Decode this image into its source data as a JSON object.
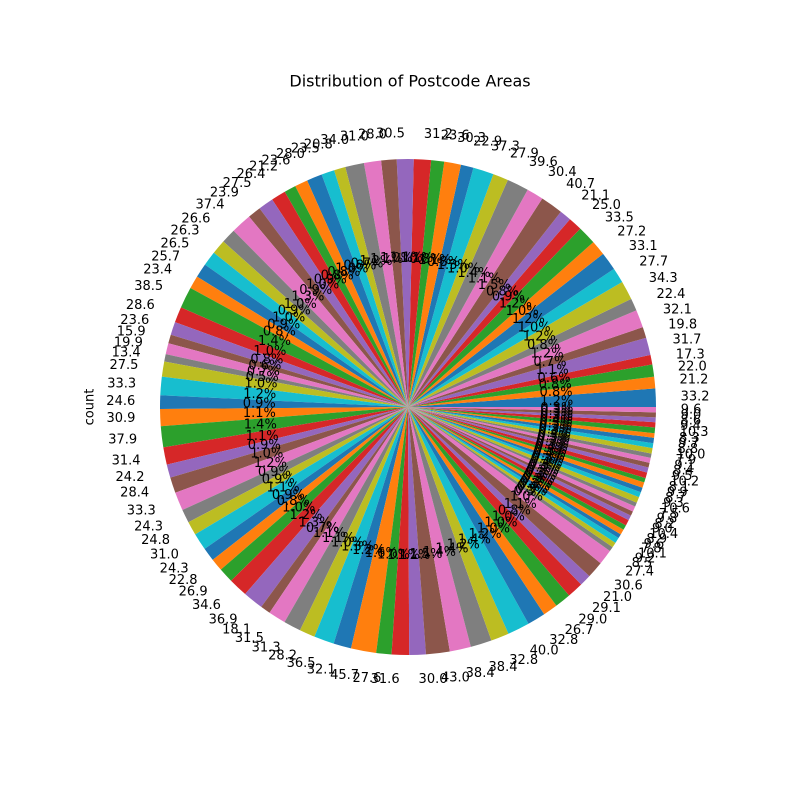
{
  "chart_data": {
    "type": "pie",
    "title": "Distribution of Postcode Areas",
    "ylabel": "count",
    "start_angle": 0,
    "colors": [
      "#1f77b4",
      "#ff7f0e",
      "#2ca02c",
      "#d62728",
      "#9467bd",
      "#8c564b",
      "#e377c2",
      "#7f7f7f",
      "#bcbd22",
      "#17becf"
    ],
    "values": [
      33.2,
      21.2,
      22.0,
      17.3,
      31.7,
      19.8,
      32.1,
      22.4,
      34.3,
      27.7,
      33.1,
      27.2,
      33.5,
      25.0,
      21.1,
      40.7,
      30.4,
      39.6,
      27.9,
      37.3,
      22.9,
      30.3,
      23.6,
      31.2,
      30.5,
      28.0,
      31.0,
      34.0,
      20.8,
      23.5,
      28.0,
      23.6,
      21.2,
      26.4,
      27.5,
      23.9,
      37.4,
      26.6,
      26.3,
      26.5,
      25.7,
      23.4,
      38.5,
      28.6,
      23.6,
      15.9,
      19.9,
      13.4,
      27.5,
      33.3,
      24.6,
      30.9,
      37.9,
      31.4,
      24.2,
      28.4,
      33.3,
      24.3,
      24.8,
      31.0,
      24.3,
      22.8,
      26.9,
      34.6,
      36.9,
      18.1,
      31.5,
      31.3,
      28.2,
      36.5,
      32.1,
      45.7,
      27.6,
      31.6,
      30.0,
      43.0,
      38.4,
      38.4,
      32.8,
      40.0,
      32.8,
      26.7,
      29.0,
      29.1,
      21.0,
      30.6,
      27.4,
      8.5,
      9.2,
      10.1,
      7.8,
      9.6,
      8.9,
      10.4,
      9.0,
      8.2,
      9.8,
      7.5,
      10.6,
      9.3,
      8.7,
      9.9,
      8.1,
      10.2,
      9.5,
      8.4,
      9.1,
      7.9,
      10.0,
      8.8,
      9.7,
      8.3,
      10.3,
      9.4,
      8.6,
      9.0,
      9.6
    ],
    "categories": [
      "33.2",
      "21.2",
      "22.0",
      "17.3",
      "31.7",
      "19.8",
      "32.1",
      "22.4",
      "34.3",
      "27.7",
      "33.1",
      "27.2",
      "33.5",
      "25.0",
      "21.1",
      "40.7",
      "30.4",
      "39.6",
      "27.9",
      "37.3",
      "22.9",
      "30.3",
      "23.6",
      "31.2",
      "30.5",
      "28.0",
      "31.0",
      "34.0",
      "20.8",
      "23.5",
      "28.0",
      "23.6",
      "21.2",
      "26.4",
      "27.5",
      "23.9",
      "37.4",
      "26.6",
      "26.3",
      "26.5",
      "25.7",
      "23.4",
      "38.5",
      "28.6",
      "23.6",
      "15.9",
      "19.9",
      "13.4",
      "27.5",
      "33.3",
      "24.6",
      "30.9",
      "37.9",
      "31.4",
      "24.2",
      "28.4",
      "33.3",
      "24.3",
      "24.8",
      "31.0",
      "24.3",
      "22.8",
      "26.9",
      "34.6",
      "36.9",
      "18.1",
      "31.5",
      "31.3",
      "28.2",
      "36.5",
      "32.1",
      "45.7",
      "27.6",
      "31.6",
      "30.0",
      "43.0",
      "38.4",
      "38.4",
      "32.8",
      "40.0",
      "32.8",
      "26.7",
      "29.0",
      "29.1",
      "21.0",
      "30.6",
      "27.4",
      "8.5",
      "9.2",
      "10.1",
      "7.8",
      "9.6",
      "8.9",
      "10.4",
      "9.0",
      "8.2",
      "9.8",
      "7.5",
      "10.6",
      "9.3",
      "8.7",
      "9.9",
      "8.1",
      "10.2",
      "9.5",
      "8.4",
      "9.1",
      "7.9",
      "10.0",
      "8.8",
      "9.7",
      "8.3",
      "10.3",
      "9.4",
      "8.6",
      "9.0",
      "9.6"
    ],
    "value_labels": [
      "1.2%",
      "0.8%",
      "0.8%",
      "0.6%",
      "1.1%",
      "0.7%",
      "1.2%",
      "0.8%",
      "1.2%",
      "1.0%",
      "1.2%",
      "1.0%",
      "1.2%",
      "0.9%",
      "0.8%",
      "1.5%",
      "1.1%",
      "1.4%",
      "1.0%",
      "1.3%",
      "0.8%",
      "1.1%",
      "0.8%",
      "1.1%",
      "1.1%",
      "1.0%",
      "1.1%",
      "1.2%",
      "0.7%",
      "0.8%",
      "1.0%",
      "0.8%",
      "0.8%",
      "0.9%",
      "1.0%",
      "0.9%",
      "1.3%",
      "1.0%",
      "0.9%",
      "1.0%",
      "0.9%",
      "0.8%",
      "1.4%",
      "1.0%",
      "0.8%",
      "0.6%",
      "0.7%",
      "0.5%",
      "1.0%",
      "1.2%",
      "0.9%",
      "1.1%",
      "1.4%",
      "1.1%",
      "0.9%",
      "1.0%",
      "1.2%",
      "0.9%",
      "0.9%",
      "1.1%",
      "0.9%",
      "0.8%",
      "1.0%",
      "1.2%",
      "1.3%",
      "0.7%",
      "1.1%",
      "1.1%",
      "1.0%",
      "1.3%",
      "1.2%",
      "1.6%",
      "1.0%",
      "1.1%",
      "1.1%",
      "1.5%",
      "1.4%",
      "1.4%",
      "1.2%",
      "1.4%",
      "1.2%",
      "1.0%",
      "1.0%",
      "1.0%",
      "0.8%",
      "1.1%",
      "1.0%",
      "0.3%",
      "0.3%",
      "0.4%",
      "0.3%",
      "0.3%",
      "0.3%",
      "0.4%",
      "0.3%",
      "0.3%",
      "0.4%",
      "0.3%",
      "0.4%",
      "0.3%",
      "0.3%",
      "0.4%",
      "0.3%",
      "0.4%",
      "0.3%",
      "0.3%",
      "0.3%",
      "0.3%",
      "0.4%",
      "0.3%",
      "0.3%",
      "0.3%",
      "0.4%",
      "0.3%",
      "0.3%",
      "0.3%",
      "0.3%"
    ]
  }
}
